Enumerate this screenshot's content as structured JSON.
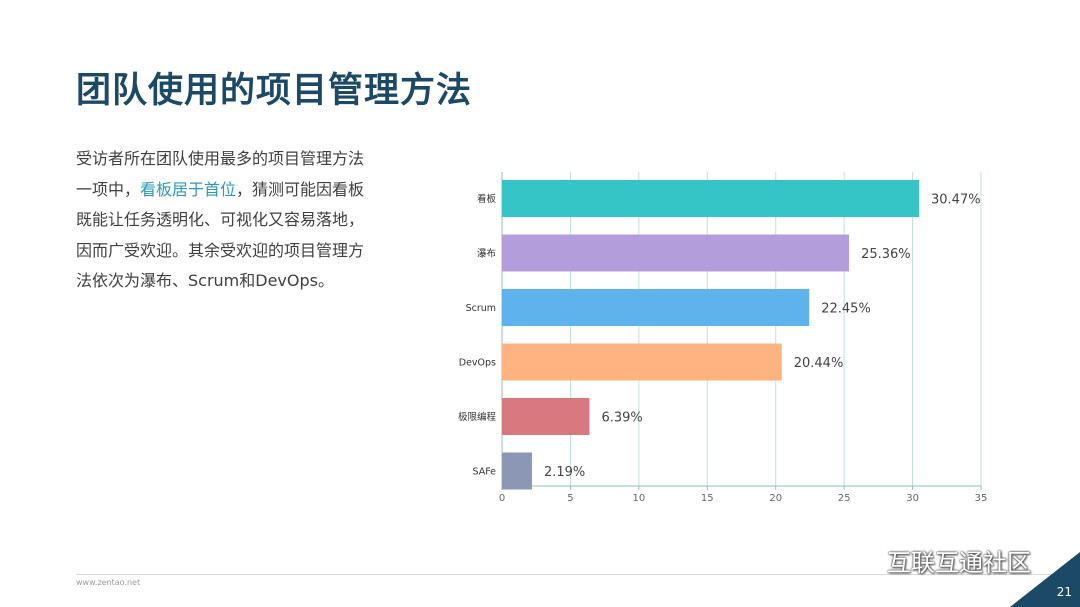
{
  "page": {
    "title": "团队使用的项目管理方法",
    "body_segments": [
      "受访者所在团队使用最多的项目管理方法一项中，",
      "看板居于首位",
      "，猜测可能因看板既能让任务透明化、可视化又容易落地，因而广受欢迎。其余受欢迎的项目管理方法依次为瀑布、Scrum和DevOps。"
    ],
    "footer_url": "www.zentao.net",
    "page_number": "21",
    "watermark_text": "互联互通社区"
  },
  "colors": {
    "title": "#1c4a66",
    "highlight": "#2b9cb3",
    "corner": "#1c4a66",
    "grid": "#bfe1de"
  },
  "chart_data": {
    "type": "bar",
    "orientation": "horizontal",
    "categories": [
      "看板",
      "瀑布",
      "Scrum",
      "DevOps",
      "极限编程",
      "SAFe"
    ],
    "values": [
      30.47,
      25.36,
      22.45,
      20.44,
      6.39,
      2.19
    ],
    "value_labels": [
      "30.47%",
      "25.36%",
      "22.45%",
      "20.44%",
      "6.39%",
      "2.19%"
    ],
    "colors": [
      "#36c5c7",
      "#b39ddb",
      "#5eb3ec",
      "#ffb380",
      "#d9787e",
      "#8b97b5"
    ],
    "xlim": [
      0,
      35
    ],
    "xticks": [
      0,
      5,
      10,
      15,
      20,
      25,
      30,
      35
    ],
    "grid": true
  }
}
